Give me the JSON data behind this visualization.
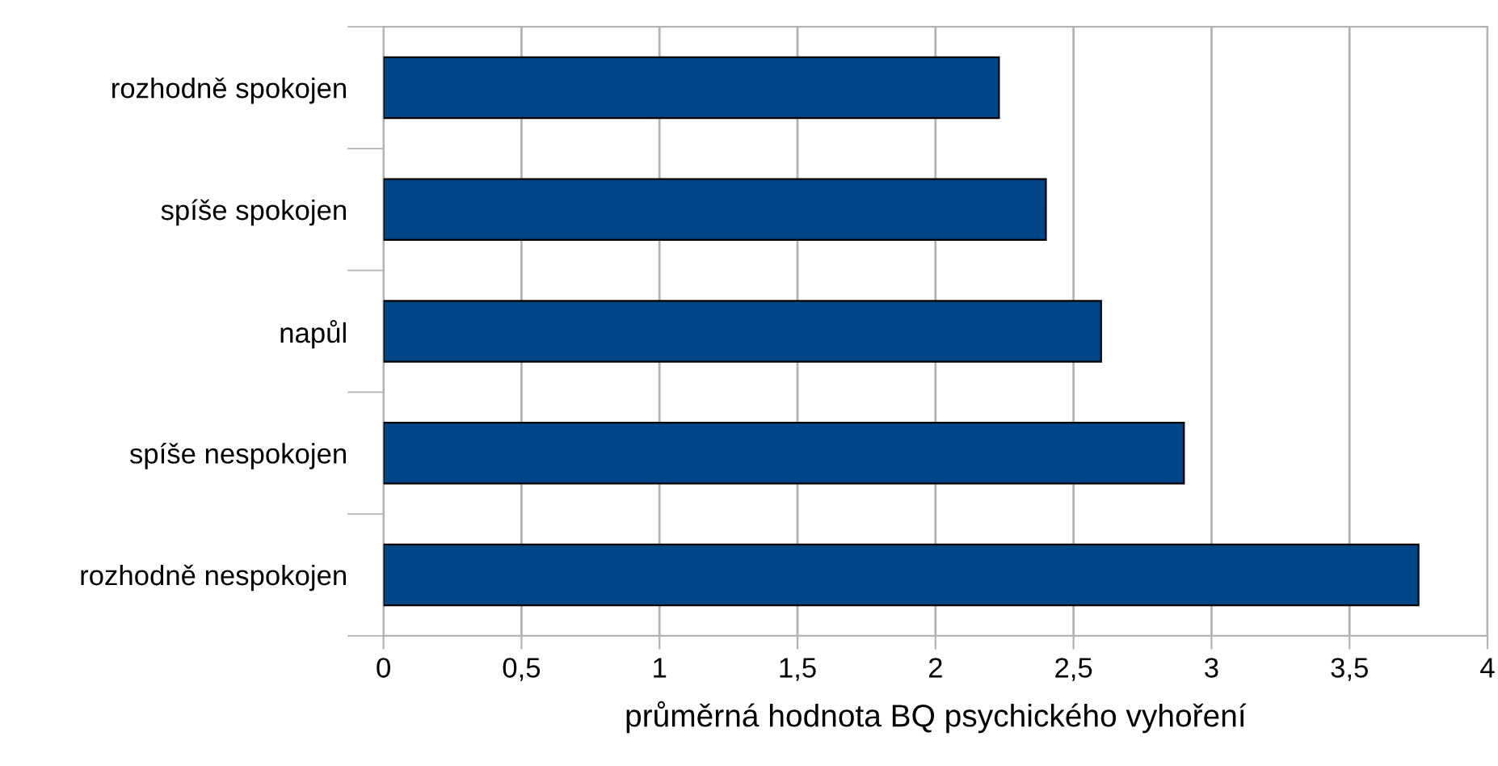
{
  "chart_data": {
    "type": "bar",
    "orientation": "horizontal",
    "xlabel": "průměrná hodnota BQ psychického vyhoření",
    "categories": [
      "rozhodně spokojen",
      "spíše spokojen",
      "napůl",
      "spíše nespokojen",
      "rozhodně nespokojen"
    ],
    "values": [
      2.23,
      2.4,
      2.6,
      2.9,
      3.75
    ],
    "color": "#004586",
    "xlim": [
      0,
      4
    ],
    "xticks": [
      0,
      {
        "value": 0.5,
        "label": "0,5"
      },
      1,
      {
        "value": 1.5,
        "label": "1,5"
      },
      2,
      {
        "value": 2.5,
        "label": "2,5"
      },
      3,
      {
        "value": 3.5,
        "label": "3,5"
      },
      4
    ],
    "grid": "x",
    "legend": false
  }
}
